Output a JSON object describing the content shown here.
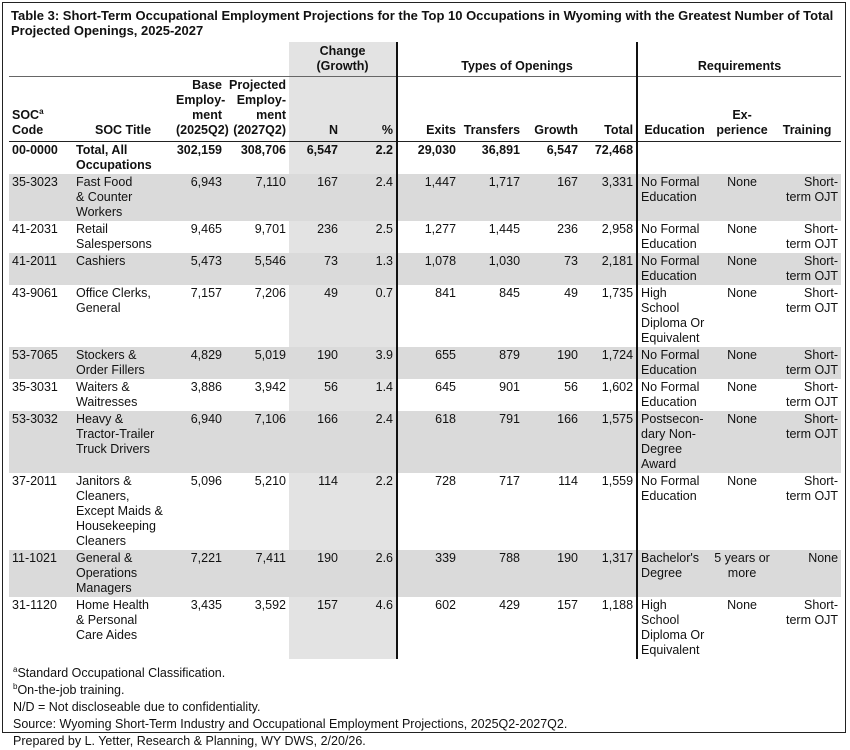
{
  "title": "Table 3: Short-Term Occupational Employment Projections for the Top 10 Occupations in Wyoming with the Greatest Number of Total Projected Openings, 2025-2027",
  "groups": [
    "Change (Growth)",
    "Types of Openings",
    "Requirements"
  ],
  "columns": [
    {
      "label": "SOC",
      "sup": "a",
      "after": "Code"
    },
    "SOC Title",
    "Base\nEmploy-\nment\n(2025Q2)",
    "Projected\nEmploy-\nment\n(2027Q2)",
    "N",
    "%",
    "Exits",
    "Transfers",
    "Growth",
    "Total",
    "Education",
    "Ex-\nperience",
    "Training"
  ],
  "rows": [
    [
      "00-0000",
      "Total, All\nOccupations",
      "302,159",
      "308,706",
      "6,547",
      "2.2",
      "29,030",
      "36,891",
      "6,547",
      "72,468"
    ],
    [
      "35-3023",
      "Fast Food\n& Counter\nWorkers",
      "6,943",
      "7,110",
      "167",
      "2.4",
      "1,447",
      "1,717",
      "167",
      "3,331",
      "No Formal\nEducation",
      "None",
      "Short-\nterm OJT"
    ],
    [
      "41-2031",
      "Retail\nSalespersons",
      "9,465",
      "9,701",
      "236",
      "2.5",
      "1,277",
      "1,445",
      "236",
      "2,958",
      "No Formal\nEducation",
      "None",
      "Short-\nterm OJT"
    ],
    [
      "41-2011",
      "Cashiers",
      "5,473",
      "5,546",
      "73",
      "1.3",
      "1,078",
      "1,030",
      "73",
      "2,181",
      "No Formal\nEducation",
      "None",
      "Short-\nterm OJT"
    ],
    [
      "43-9061",
      "Office Clerks,\nGeneral",
      "7,157",
      "7,206",
      "49",
      "0.7",
      "841",
      "845",
      "49",
      "1,735",
      "High School\nDiploma Or\nEquivalent",
      "None",
      "Short-\nterm OJT"
    ],
    [
      "53-7065",
      "Stockers &\nOrder Fillers",
      "4,829",
      "5,019",
      "190",
      "3.9",
      "655",
      "879",
      "190",
      "1,724",
      "No Formal\nEducation",
      "None",
      "Short-\nterm OJT"
    ],
    [
      "35-3031",
      "Waiters &\nWaitresses",
      "3,886",
      "3,942",
      "56",
      "1.4",
      "645",
      "901",
      "56",
      "1,602",
      "No Formal\nEducation",
      "None",
      "Short-\nterm OJT"
    ],
    [
      "53-3032",
      "Heavy &\nTractor-Trailer\nTruck Drivers",
      "6,940",
      "7,106",
      "166",
      "2.4",
      "618",
      "791",
      "166",
      "1,575",
      "Postsecon-\ndary Non-\nDegree\nAward",
      "None",
      "Short-\nterm OJT"
    ],
    [
      "37-2011",
      "Janitors &\nCleaners,\nExcept Maids &\nHousekeeping\nCleaners",
      "5,096",
      "5,210",
      "114",
      "2.2",
      "728",
      "717",
      "114",
      "1,559",
      "No Formal\nEducation",
      "None",
      "Short-\nterm OJT"
    ],
    [
      "11-1021",
      "General &\nOperations\nManagers",
      "7,221",
      "7,411",
      "190",
      "2.6",
      "339",
      "788",
      "190",
      "1,317",
      "Bachelor's\nDegree",
      "5 years or\nmore",
      "None"
    ],
    [
      "31-1120",
      "Home Health\n& Personal\nCare Aides",
      "3,435",
      "3,592",
      "157",
      "4.6",
      "602",
      "429",
      "157",
      "1,188",
      "High School\nDiploma Or\nEquivalent",
      "None",
      "Short-\nterm OJT"
    ]
  ],
  "footnotes": [
    {
      "sup": "a",
      "text": "Standard Occupational Classification."
    },
    {
      "sup": "b",
      "text": "On-the-job training."
    },
    "N/D = Not discloseable due to confidentiality.",
    "Source: Wyoming Short-Term Industry and Occupational Employment Projections, 2025Q2-2027Q2.",
    "Prepared by L. Yetter, Research & Planning, WY DWS, 2/20/26."
  ]
}
